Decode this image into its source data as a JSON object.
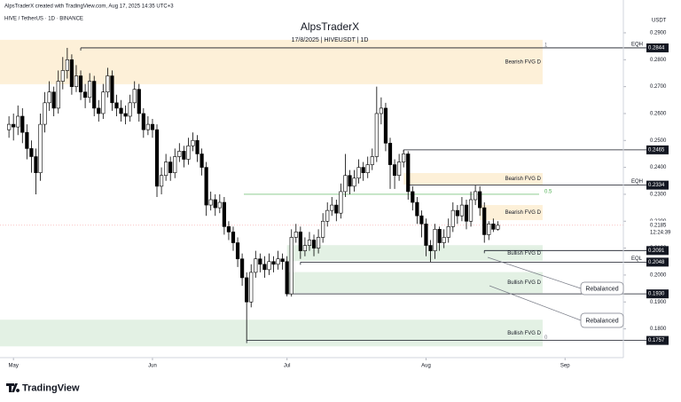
{
  "chart_data": {
    "type": "candlestick",
    "header": "AlpsTraderX created with TradingView.com, Aug 17, 2025 14:35 UTC+3",
    "symbol": "HIVE / TetherUS · 1D · BINANCE",
    "title": "AlpsTraderX",
    "subtitle": "17/8/2025 | HIVEUSDT | 1D",
    "y_axis_label": "USDT",
    "brand": "TradingView",
    "x": [
      "2025-04-30",
      "2025-05-01",
      "2025-05-02",
      "2025-05-03",
      "2025-05-04",
      "2025-05-05",
      "2025-05-06",
      "2025-05-07",
      "2025-05-08",
      "2025-05-09",
      "2025-05-10",
      "2025-05-11",
      "2025-05-12",
      "2025-05-13",
      "2025-05-14",
      "2025-05-15",
      "2025-05-16",
      "2025-05-17",
      "2025-05-18",
      "2025-05-19",
      "2025-05-20",
      "2025-05-21",
      "2025-05-22",
      "2025-05-23",
      "2025-05-24",
      "2025-05-25",
      "2025-05-26",
      "2025-05-27",
      "2025-05-28",
      "2025-05-29",
      "2025-05-30",
      "2025-05-31",
      "2025-06-01",
      "2025-06-02",
      "2025-06-03",
      "2025-06-04",
      "2025-06-05",
      "2025-06-06",
      "2025-06-07",
      "2025-06-08",
      "2025-06-09",
      "2025-06-10",
      "2025-06-11",
      "2025-06-12",
      "2025-06-13",
      "2025-06-14",
      "2025-06-15",
      "2025-06-16",
      "2025-06-17",
      "2025-06-18",
      "2025-06-19",
      "2025-06-20",
      "2025-06-21",
      "2025-06-22",
      "2025-06-23",
      "2025-06-24",
      "2025-06-25",
      "2025-06-26",
      "2025-06-27",
      "2025-06-28",
      "2025-06-29",
      "2025-06-30",
      "2025-07-01",
      "2025-07-02",
      "2025-07-03",
      "2025-07-04",
      "2025-07-05",
      "2025-07-06",
      "2025-07-07",
      "2025-07-08",
      "2025-07-09",
      "2025-07-10",
      "2025-07-11",
      "2025-07-12",
      "2025-07-13",
      "2025-07-14",
      "2025-07-15",
      "2025-07-16",
      "2025-07-17",
      "2025-07-18",
      "2025-07-19",
      "2025-07-20",
      "2025-07-21",
      "2025-07-22",
      "2025-07-23",
      "2025-07-24",
      "2025-07-25",
      "2025-07-26",
      "2025-07-27",
      "2025-07-28",
      "2025-07-29",
      "2025-07-30",
      "2025-07-31",
      "2025-08-01",
      "2025-08-02",
      "2025-08-03",
      "2025-08-04",
      "2025-08-05",
      "2025-08-06",
      "2025-08-07",
      "2025-08-08",
      "2025-08-09",
      "2025-08-10",
      "2025-08-11",
      "2025-08-12",
      "2025-08-13",
      "2025-08-14",
      "2025-08-15",
      "2025-08-16",
      "2025-08-17"
    ],
    "open": [
      0.254,
      0.256,
      0.255,
      0.259,
      0.253,
      0.247,
      0.244,
      0.238,
      0.256,
      0.264,
      0.268,
      0.262,
      0.272,
      0.276,
      0.28,
      0.27,
      0.274,
      0.268,
      0.266,
      0.272,
      0.262,
      0.26,
      0.268,
      0.274,
      0.264,
      0.262,
      0.26,
      0.259,
      0.264,
      0.269,
      0.26,
      0.254,
      0.256,
      0.254,
      0.233,
      0.237,
      0.242,
      0.238,
      0.244,
      0.246,
      0.243,
      0.248,
      0.25,
      0.245,
      0.24,
      0.226,
      0.228,
      0.225,
      0.227,
      0.218,
      0.216,
      0.212,
      0.206,
      0.199,
      0.19,
      0.201,
      0.206,
      0.204,
      0.202,
      0.205,
      0.204,
      0.206,
      0.205,
      0.193,
      0.214,
      0.216,
      0.209,
      0.211,
      0.213,
      0.21,
      0.214,
      0.22,
      0.224,
      0.226,
      0.223,
      0.231,
      0.237,
      0.233,
      0.236,
      0.24,
      0.238,
      0.241,
      0.244,
      0.26,
      0.262,
      0.249,
      0.241,
      0.237,
      0.242,
      0.245,
      0.231,
      0.227,
      0.222,
      0.219,
      0.211,
      0.209,
      0.217,
      0.212,
      0.214,
      0.218,
      0.224,
      0.222,
      0.226,
      0.22,
      0.228,
      0.231,
      0.225,
      0.215,
      0.219,
      0.217
    ],
    "high": [
      0.259,
      0.26,
      0.263,
      0.262,
      0.256,
      0.25,
      0.247,
      0.26,
      0.268,
      0.272,
      0.27,
      0.276,
      0.281,
      0.2844,
      0.282,
      0.278,
      0.276,
      0.271,
      0.275,
      0.274,
      0.265,
      0.271,
      0.277,
      0.276,
      0.267,
      0.265,
      0.263,
      0.267,
      0.272,
      0.271,
      0.262,
      0.259,
      0.258,
      0.256,
      0.24,
      0.245,
      0.244,
      0.247,
      0.249,
      0.248,
      0.251,
      0.253,
      0.252,
      0.247,
      0.242,
      0.231,
      0.23,
      0.23,
      0.229,
      0.22,
      0.218,
      0.214,
      0.208,
      0.201,
      0.204,
      0.209,
      0.208,
      0.207,
      0.208,
      0.207,
      0.209,
      0.208,
      0.207,
      0.217,
      0.219,
      0.218,
      0.214,
      0.216,
      0.215,
      0.217,
      0.223,
      0.227,
      0.229,
      0.228,
      0.234,
      0.245,
      0.239,
      0.239,
      0.243,
      0.242,
      0.244,
      0.247,
      0.27,
      0.266,
      0.264,
      0.251,
      0.243,
      0.245,
      0.2465,
      0.246,
      0.233,
      0.229,
      0.224,
      0.221,
      0.213,
      0.219,
      0.218,
      0.217,
      0.221,
      0.227,
      0.226,
      0.229,
      0.228,
      0.231,
      0.2334,
      0.233,
      0.227,
      0.22,
      0.221,
      0.22
    ],
    "low": [
      0.251,
      0.25,
      0.252,
      0.249,
      0.243,
      0.238,
      0.23,
      0.235,
      0.253,
      0.261,
      0.259,
      0.26,
      0.269,
      0.273,
      0.267,
      0.268,
      0.265,
      0.262,
      0.264,
      0.259,
      0.257,
      0.258,
      0.266,
      0.261,
      0.259,
      0.257,
      0.256,
      0.257,
      0.262,
      0.257,
      0.251,
      0.252,
      0.251,
      0.229,
      0.23,
      0.235,
      0.235,
      0.236,
      0.242,
      0.24,
      0.241,
      0.246,
      0.242,
      0.237,
      0.222,
      0.224,
      0.222,
      0.223,
      0.215,
      0.213,
      0.209,
      0.203,
      0.196,
      0.1757,
      0.188,
      0.199,
      0.201,
      0.199,
      0.2,
      0.201,
      0.202,
      0.202,
      0.1925,
      0.192,
      0.212,
      0.206,
      0.207,
      0.209,
      0.207,
      0.208,
      0.212,
      0.218,
      0.222,
      0.22,
      0.221,
      0.229,
      0.23,
      0.231,
      0.234,
      0.235,
      0.236,
      0.239,
      0.242,
      0.256,
      0.246,
      0.232,
      0.232,
      0.235,
      0.24,
      0.228,
      0.224,
      0.219,
      0.214,
      0.207,
      0.2048,
      0.206,
      0.209,
      0.21,
      0.212,
      0.216,
      0.219,
      0.22,
      0.217,
      0.218,
      0.226,
      0.222,
      0.212,
      0.213,
      0.216,
      0.2165
    ],
    "close": [
      0.256,
      0.255,
      0.259,
      0.253,
      0.247,
      0.244,
      0.238,
      0.256,
      0.264,
      0.268,
      0.262,
      0.272,
      0.276,
      0.28,
      0.27,
      0.274,
      0.268,
      0.266,
      0.272,
      0.262,
      0.26,
      0.268,
      0.274,
      0.264,
      0.262,
      0.26,
      0.259,
      0.264,
      0.269,
      0.26,
      0.254,
      0.256,
      0.254,
      0.233,
      0.237,
      0.242,
      0.238,
      0.244,
      0.246,
      0.243,
      0.248,
      0.25,
      0.245,
      0.24,
      0.226,
      0.228,
      0.225,
      0.227,
      0.218,
      0.216,
      0.212,
      0.206,
      0.199,
      0.19,
      0.201,
      0.206,
      0.204,
      0.202,
      0.205,
      0.204,
      0.206,
      0.205,
      0.193,
      0.214,
      0.216,
      0.209,
      0.211,
      0.213,
      0.21,
      0.214,
      0.22,
      0.224,
      0.226,
      0.223,
      0.231,
      0.237,
      0.233,
      0.236,
      0.24,
      0.238,
      0.241,
      0.244,
      0.26,
      0.262,
      0.249,
      0.241,
      0.237,
      0.242,
      0.245,
      0.231,
      0.227,
      0.222,
      0.219,
      0.211,
      0.209,
      0.217,
      0.212,
      0.214,
      0.218,
      0.224,
      0.222,
      0.226,
      0.22,
      0.228,
      0.231,
      0.225,
      0.215,
      0.219,
      0.217,
      0.2185
    ],
    "xlim": [
      "2025-04-28",
      "2025-09-14"
    ],
    "xticks": [
      {
        "value": "2025-05-01",
        "label": "May"
      },
      {
        "value": "2025-06-01",
        "label": "Jun"
      },
      {
        "value": "2025-07-01",
        "label": "Jul"
      },
      {
        "value": "2025-08-01",
        "label": "Aug"
      },
      {
        "value": "2025-09-01",
        "label": "Sep"
      }
    ],
    "ylim": [
      0.1703,
      0.2923
    ],
    "yticks": [
      {
        "value": 0.29,
        "label": "0.2900"
      },
      {
        "value": 0.28,
        "label": "0.2800"
      },
      {
        "value": 0.27,
        "label": "0.2700"
      },
      {
        "value": 0.26,
        "label": "0.2600"
      },
      {
        "value": 0.25,
        "label": "0.2500"
      },
      {
        "value": 0.24,
        "label": "0.2400"
      },
      {
        "value": 0.23,
        "label": "0.2300"
      },
      {
        "value": 0.22,
        "label": "0.2200"
      },
      {
        "value": 0.21,
        "label": "0.2100"
      },
      {
        "value": 0.2,
        "label": "0.2000"
      },
      {
        "value": 0.19,
        "label": "0.1900"
      },
      {
        "value": 0.18,
        "label": "0.1800"
      }
    ],
    "grid": false,
    "up_color": "#ffffff",
    "down_color": "#000000",
    "last_price": {
      "value": 0.2185,
      "label": "0.2185"
    },
    "countdown": "12:24:39",
    "levels": [
      {
        "price": {
          "value": 0.2844,
          "label": "0.2844"
        },
        "tag": "EQH",
        "from": "2025-05-16"
      },
      {
        "price": {
          "value": 0.2465,
          "label": "0.2465"
        },
        "from": "2025-07-27"
      },
      {
        "price": {
          "value": 0.2334,
          "label": "0.2334"
        },
        "tag": "EQH",
        "from": "2025-07-28"
      },
      {
        "price": {
          "value": 0.2091,
          "label": "0.2091"
        },
        "from": "2025-08-14"
      },
      {
        "price": {
          "value": 0.2048,
          "label": "0.2048"
        },
        "tag": "EQL",
        "from": "2025-07-04"
      },
      {
        "price": {
          "value": 0.193,
          "label": "0.1930"
        },
        "from": "2025-07-01"
      },
      {
        "price": {
          "value": 0.1757,
          "label": "0.1757"
        },
        "from": "2025-06-22"
      }
    ],
    "zones": [
      {
        "label": "Bearish FVG D",
        "range": [
          0.2709,
          0.2874
        ],
        "from": "2025-04-28",
        "to": "2025-08-27",
        "color": "#fdf0d8"
      },
      {
        "label": "Bearish FVG D",
        "range": [
          0.2336,
          0.2379
        ],
        "from": "2025-07-27",
        "to": "2025-08-27",
        "color": "#fdf0d8"
      },
      {
        "label": "Bearish FVG D",
        "range": [
          0.2204,
          0.226
        ],
        "from": "2025-08-13",
        "to": "2025-08-27",
        "color": "#fdf0d8"
      },
      {
        "label": "Bullish FVG D",
        "range": [
          0.2052,
          0.2111
        ],
        "from": "2025-07-01",
        "to": "2025-08-27",
        "color": "#e3f1e4"
      },
      {
        "label": "Bullish FVG D",
        "range": [
          0.1933,
          0.2011
        ],
        "from": "2025-07-01",
        "to": "2025-08-27",
        "color": "#e3f1e4"
      },
      {
        "label": "Bullish FVG D",
        "range": [
          0.1735,
          0.1834
        ],
        "from": "2025-04-28",
        "to": "2025-08-27",
        "color": "#e3f1e4"
      }
    ],
    "fib": [
      {
        "ratio": 1,
        "price": 0.2844
      },
      {
        "ratio": 0.5,
        "price": 0.23
      },
      {
        "ratio": 0,
        "price": 0.1757
      }
    ],
    "annotations": [
      "Rebalanced",
      "Rebalanced"
    ]
  }
}
